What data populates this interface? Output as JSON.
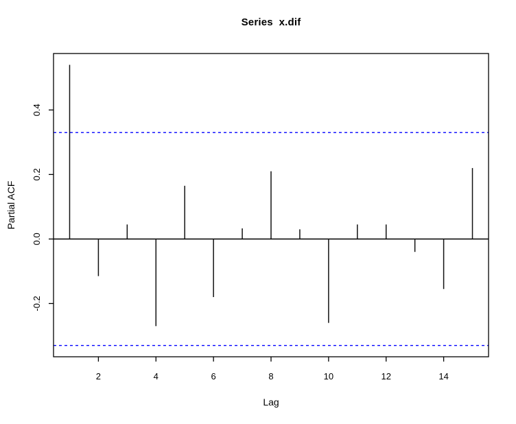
{
  "title": "Series  x.dif",
  "axes": {
    "xlabel": "Lag",
    "ylabel": "Partial ACF",
    "x_ticks": [
      {
        "label": "2",
        "value": 2
      },
      {
        "label": "4",
        "value": 4
      },
      {
        "label": "6",
        "value": 6
      },
      {
        "label": "8",
        "value": 8
      },
      {
        "label": "10",
        "value": 10
      },
      {
        "label": "12",
        "value": 12
      },
      {
        "label": "14",
        "value": 14
      }
    ],
    "y_ticks": [
      {
        "label": "0.4",
        "value": 0.4
      },
      {
        "label": "0.2",
        "value": 0.2
      },
      {
        "label": "0.0",
        "value": 0.0
      },
      {
        "label": "-0.2",
        "value": -0.2
      }
    ]
  },
  "chart_data": {
    "type": "bar",
    "subtype": "pacf-spike-plot",
    "title": "Series  x.dif",
    "xlabel": "Lag",
    "ylabel": "Partial ACF",
    "x": [
      1,
      2,
      3,
      4,
      5,
      6,
      7,
      8,
      9,
      10,
      11,
      12,
      13,
      14,
      15
    ],
    "values": [
      0.54,
      -0.115,
      0.045,
      -0.27,
      0.165,
      -0.18,
      0.033,
      0.21,
      0.03,
      -0.26,
      0.045,
      0.045,
      -0.04,
      -0.155,
      0.22
    ],
    "baseline": 0,
    "confidence_bounds": {
      "upper": 0.33,
      "lower": -0.33,
      "line_style": "dashed",
      "color": "#0000FF"
    },
    "xlim": [
      0.44,
      15.56
    ],
    "ylim": [
      -0.365,
      0.575
    ],
    "x_tick_values": [
      2,
      4,
      6,
      8,
      10,
      12,
      14
    ],
    "y_tick_values": [
      0.4,
      0.2,
      0.0,
      -0.2
    ],
    "grid": false,
    "spike_color": "#111111",
    "axis_color": "#000000",
    "background_color": "#FFFFFF"
  }
}
